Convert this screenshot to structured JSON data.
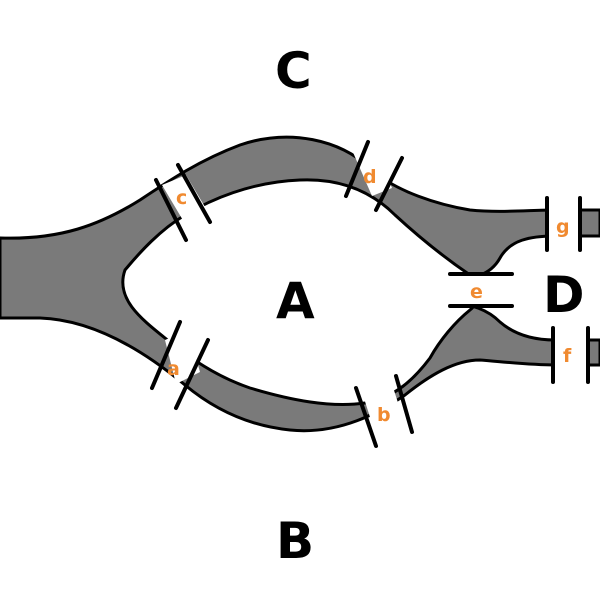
{
  "regions": [
    {
      "id": "A",
      "label": "A"
    },
    {
      "id": "B",
      "label": "B"
    },
    {
      "id": "C",
      "label": "C"
    },
    {
      "id": "D",
      "label": "D"
    }
  ],
  "bridges": [
    {
      "id": "a",
      "label": "a"
    },
    {
      "id": "b",
      "label": "b"
    },
    {
      "id": "c",
      "label": "c"
    },
    {
      "id": "d",
      "label": "d"
    },
    {
      "id": "e",
      "label": "e"
    },
    {
      "id": "f",
      "label": "f"
    },
    {
      "id": "g",
      "label": "g"
    }
  ],
  "colors": {
    "water": "#7a7a7a",
    "bridge_label": "#f08a30",
    "outline": "#000000",
    "land": "#ffffff"
  }
}
